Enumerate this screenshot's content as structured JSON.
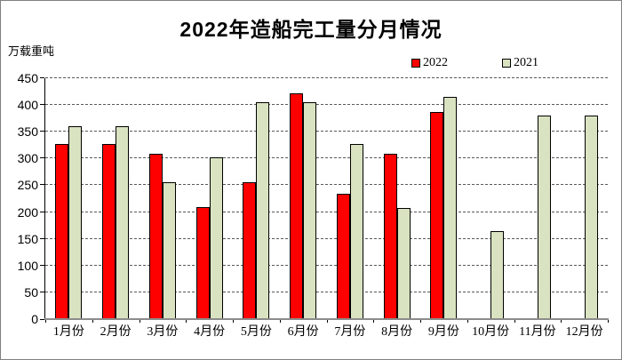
{
  "chart_data": {
    "type": "bar",
    "title": "2022年造船完工量分月情况",
    "ylabel": "万载重吨",
    "categories": [
      "1月份",
      "2月份",
      "3月份",
      "4月份",
      "5月份",
      "6月份",
      "7月份",
      "8月份",
      "9月份",
      "10月份",
      "11月份",
      "12月份"
    ],
    "series": [
      {
        "name": "2022",
        "color": "#fe0000",
        "values": [
          327,
          327,
          309,
          210,
          256,
          422,
          234,
          309,
          387,
          null,
          null,
          null
        ]
      },
      {
        "name": "2021",
        "color": "#d9e3c1",
        "values": [
          361,
          361,
          255,
          302,
          405,
          405,
          327,
          207,
          415,
          165,
          380,
          381
        ]
      }
    ],
    "ylim": [
      0,
      450
    ],
    "yticks": [
      0,
      50,
      100,
      150,
      200,
      250,
      300,
      350,
      400,
      450
    ],
    "grid": "horizontal-dashed",
    "legend_position": "top-right",
    "colors": {
      "bar_border": "#000000",
      "gridline": "#595959",
      "axis": "#000000",
      "baseline": "#8c8c8c"
    }
  }
}
